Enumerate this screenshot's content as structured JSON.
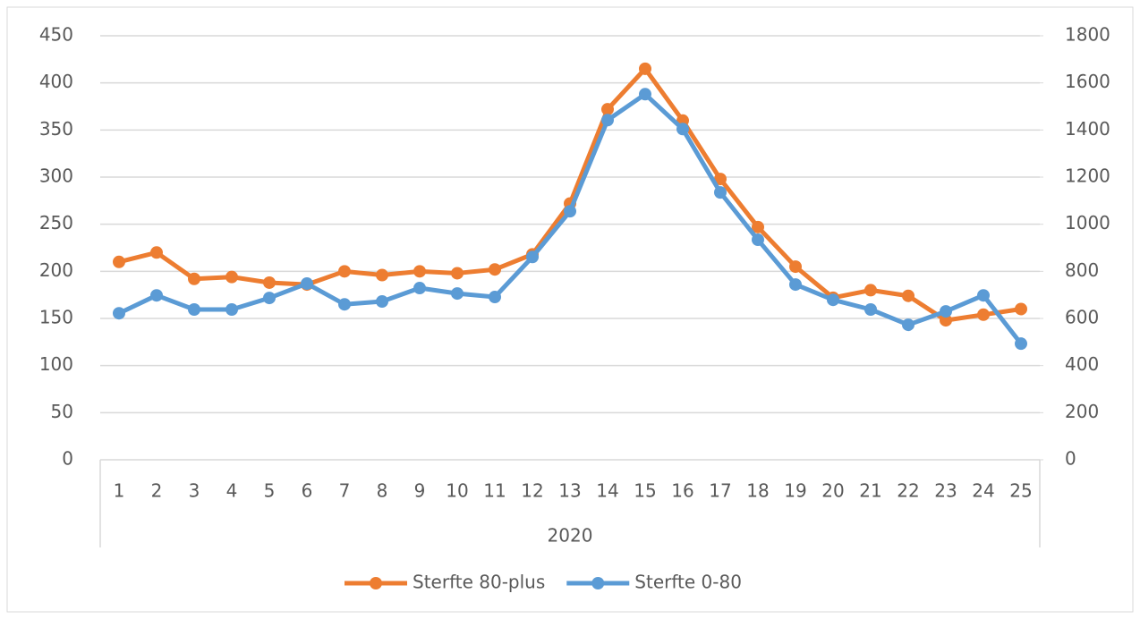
{
  "chart_data": {
    "type": "line",
    "categories": [
      "1",
      "2",
      "3",
      "4",
      "5",
      "6",
      "7",
      "8",
      "9",
      "10",
      "11",
      "12",
      "13",
      "14",
      "15",
      "16",
      "17",
      "18",
      "19",
      "20",
      "21",
      "22",
      "23",
      "24",
      "25"
    ],
    "x_group_label": "2020",
    "series": [
      {
        "name": "Sterfte 80-plus",
        "color": "#ed7d31",
        "values": [
          210,
          220,
          192,
          194,
          188,
          186,
          200,
          196,
          200,
          198,
          202,
          218,
          272,
          372,
          415,
          360,
          298,
          247,
          205,
          172,
          180,
          174,
          148,
          154,
          160
        ]
      },
      {
        "name": "Sterfte 0-80",
        "color": "#5b9bd5",
        "axis": "y2",
        "values": [
          622,
          698,
          638,
          638,
          687,
          748,
          660,
          672,
          729,
          706,
          691,
          861,
          1055,
          1442,
          1552,
          1404,
          1135,
          934,
          744,
          679,
          638,
          573,
          630,
          698,
          493
        ]
      }
    ],
    "ylim": [
      0,
      450
    ],
    "yticks": [
      0,
      50,
      100,
      150,
      200,
      250,
      300,
      350,
      400,
      450
    ],
    "y2lim": [
      0,
      1800
    ],
    "y2ticks": [
      0,
      200,
      400,
      600,
      800,
      1000,
      1200,
      1400,
      1600,
      1800
    ],
    "grid": true,
    "legend": "bottom"
  }
}
